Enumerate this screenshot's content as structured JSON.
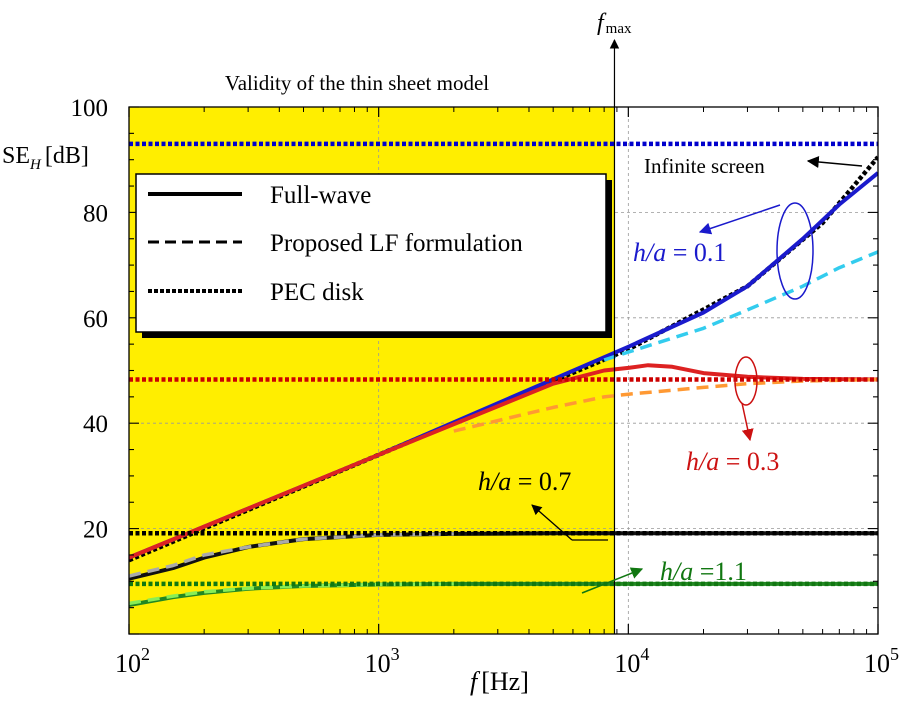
{
  "chart_data": {
    "type": "line",
    "x_scale": "log",
    "xlim": [
      100,
      100000
    ],
    "ylim": [
      0,
      100
    ],
    "title": "Validity of the thin sheet model",
    "xlabel": {
      "var": "f",
      "unit": "[Hz]"
    },
    "ylabel": {
      "main": "SE",
      "sub": "H",
      "unit": "[dB]"
    },
    "fmax_label": {
      "var": "f",
      "sub": "max"
    },
    "fmax_value": 8800,
    "validity_region": [
      100,
      8800
    ],
    "x_ticks": [
      {
        "value": 100,
        "base": "10",
        "exp": "2"
      },
      {
        "value": 1000,
        "base": "10",
        "exp": "3"
      },
      {
        "value": 10000,
        "base": "10",
        "exp": "4"
      },
      {
        "value": 100000,
        "base": "10",
        "exp": "5"
      }
    ],
    "y_ticks": [
      "20",
      "40",
      "60",
      "80",
      "100"
    ],
    "grid": true,
    "legend": {
      "position": "top-left",
      "entries": [
        {
          "label": "Full-wave",
          "style": "solid"
        },
        {
          "label": "Proposed LF formulation",
          "style": "dashed"
        },
        {
          "label": "PEC disk",
          "style": "dotted"
        }
      ]
    },
    "annotations": {
      "infinite_screen": "Infinite screen",
      "h01": {
        "var": "h/a",
        "text": " = 0.1"
      },
      "h03": {
        "var": "h/a",
        "text": " = 0.3"
      },
      "h07": {
        "var": "h/a",
        "text": " =  0.7"
      },
      "h11": {
        "var": "h/a",
        "text": " =1.1"
      }
    },
    "series": [
      {
        "name": "Infinite screen",
        "style": "dotted",
        "color": "#000000",
        "x": [
          100,
          1000,
          10000,
          30000,
          60000,
          100000
        ],
        "y": [
          14.0,
          34.0,
          54.0,
          66.0,
          78.0,
          90.5
        ]
      },
      {
        "name": "h/a = 0.1 Full-wave",
        "style": "solid",
        "color": "#1a1acc",
        "x": [
          100,
          1000,
          10000,
          20000,
          30000,
          50000,
          70000,
          100000
        ],
        "y": [
          14.5,
          34.0,
          54.5,
          61.0,
          66.0,
          75.0,
          81.5,
          87.5
        ]
      },
      {
        "name": "h/a = 0.1 Proposed LF",
        "style": "dashed",
        "color": "#33ccee",
        "x": [
          8000,
          10000,
          20000,
          30000,
          50000,
          70000,
          100000
        ],
        "y": [
          52.0,
          53.5,
          58.0,
          61.5,
          66.0,
          69.5,
          72.5
        ]
      },
      {
        "name": "h/a = 0.1 PEC disk",
        "style": "dotted",
        "color": "#0000cc",
        "x": [
          100,
          100000
        ],
        "y": [
          93.0,
          93.0
        ]
      },
      {
        "name": "h/a = 0.3 Full-wave",
        "style": "solid",
        "color": "#dd2222",
        "x": [
          100,
          1000,
          5000,
          8000,
          10000,
          12000,
          15000,
          20000,
          30000,
          50000,
          100000
        ],
        "y": [
          14.5,
          34.0,
          47.5,
          50.0,
          50.5,
          51.0,
          50.7,
          49.5,
          48.8,
          48.4,
          48.3
        ]
      },
      {
        "name": "h/a = 0.3 Proposed LF",
        "style": "dashed",
        "color": "#ff9933",
        "x": [
          2000,
          5000,
          8000,
          10000,
          20000,
          30000,
          50000,
          100000
        ],
        "y": [
          38.5,
          43.0,
          45.0,
          45.5,
          46.8,
          47.5,
          48.0,
          48.3
        ]
      },
      {
        "name": "h/a = 0.3 PEC disk",
        "style": "dotted",
        "color": "#cc0000",
        "x": [
          100,
          100000
        ],
        "y": [
          48.3,
          48.3
        ]
      },
      {
        "name": "h/a = 0.7 Full-wave",
        "style": "solid",
        "color": "#111111",
        "x": [
          100,
          150,
          200,
          300,
          500,
          1000,
          2000,
          5000,
          100000
        ],
        "y": [
          10.5,
          12.5,
          14.5,
          16.5,
          18.0,
          18.8,
          19.0,
          19.1,
          19.1
        ]
      },
      {
        "name": "h/a = 0.7 Proposed LF",
        "style": "dashed",
        "color": "#aaaaaa",
        "x": [
          100,
          150,
          200,
          300,
          500,
          1000,
          2000
        ],
        "y": [
          11.0,
          13.0,
          15.0,
          16.5,
          18.0,
          18.8,
          19.0
        ]
      },
      {
        "name": "h/a = 0.7 PEC disk",
        "style": "dotted",
        "color": "#000000",
        "x": [
          100,
          100000
        ],
        "y": [
          19.1,
          19.1
        ]
      },
      {
        "name": "h/a = 1.1 Full-wave",
        "style": "solid",
        "color": "#228822",
        "x": [
          100,
          150,
          200,
          300,
          500,
          1000,
          2000,
          100000
        ],
        "y": [
          5.5,
          7.0,
          7.8,
          8.6,
          9.1,
          9.4,
          9.5,
          9.5
        ]
      },
      {
        "name": "h/a = 1.1 Proposed LF",
        "style": "dashed",
        "color": "#88ee55",
        "x": [
          100,
          150,
          200,
          300,
          500,
          1000,
          2000
        ],
        "y": [
          5.8,
          7.2,
          8.0,
          8.7,
          9.1,
          9.4,
          9.5
        ]
      },
      {
        "name": "h/a = 1.1 PEC disk",
        "style": "dotted",
        "color": "#117711",
        "x": [
          100,
          100000
        ],
        "y": [
          9.5,
          9.5
        ]
      }
    ],
    "colors": {
      "validity_fill": "#ffee00",
      "grid": "#999999",
      "h01": "#1a1acc",
      "h03": "#cc1111",
      "h07": "#000000",
      "h11": "#117711"
    }
  }
}
